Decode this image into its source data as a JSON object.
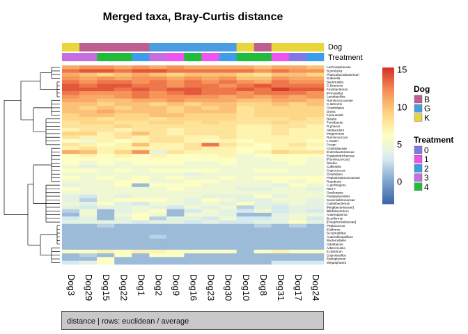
{
  "chart_data": {
    "type": "heatmap",
    "title": "Merged taxa, Bray-Curtis distance",
    "columns": [
      "Dog3",
      "Dog29",
      "Dog15",
      "Dog22",
      "Dog1",
      "Dog2",
      "Dog9",
      "Dog16",
      "Dog23",
      "Dog30",
      "Dog10",
      "Dog8",
      "Dog31",
      "Dog17",
      "Dog24"
    ],
    "rows": [
      "Lachnospiraceae",
      "B.producta",
      "Phascolarctobacterium",
      "Sutterella",
      "Bacteroides",
      "C.hiranonis",
      "Fusobacterium",
      "[Prevotella]",
      "Lactobacillus",
      "Ruminococcaceae",
      "C.stercoris",
      "Clostridiales",
      "Dorea",
      "F.prausnitzii",
      "Blautia",
      "Turicibacter",
      "R.gnavus",
      "Allobaculum",
      "Megamonas",
      "Ruminococcus",
      "L.reuteri",
      "P.copri",
      "Clostridiaceae",
      "Enterobacteriaceae",
      "Erysipelotrichaceae",
      "[Ruminococcus]",
      "Slackia",
      "Collinsella",
      "Coprococcus",
      "Clostridium",
      "Peptostreptococcaceae",
      "Roseburia",
      "C.perfringens",
      "RS4-7",
      "Oscillospira",
      "Parabacteroides",
      "Succinivibrionaceae",
      "Catenibacterium",
      "[Mogibacteriaceae]",
      "Bifidobacterium",
      "Anaeroplasma",
      "B.uniformis",
      "[Paraprevotellaceae]",
      "Peptococcus",
      "E.biforme",
      "B.coprophilus",
      "Anaerobiospirillum",
      "Bacteroidales",
      "Odoribacter",
      "Adlercreutzia",
      "E.dolichum",
      "Coprobacillus",
      "Epulopiscium",
      "Megasphaera"
    ],
    "values": [
      [
        11,
        12,
        12,
        11,
        12,
        11,
        12,
        11,
        11,
        11,
        11,
        10,
        11,
        11,
        10
      ],
      [
        13,
        14,
        14,
        13,
        14,
        14,
        13,
        13,
        13,
        13,
        13,
        12,
        13,
        12,
        12
      ],
      [
        11,
        10,
        9,
        10,
        11,
        10,
        9,
        10,
        10,
        10,
        9,
        8,
        10,
        10,
        9
      ],
      [
        12,
        11,
        12,
        11,
        12,
        12,
        11,
        12,
        11,
        12,
        10,
        10,
        12,
        11,
        11
      ],
      [
        13,
        12,
        13,
        13,
        12,
        13,
        12,
        13,
        12,
        13,
        12,
        11,
        13,
        12,
        12
      ],
      [
        14,
        13,
        14,
        14,
        13,
        13,
        12,
        13,
        13,
        12,
        13,
        14,
        13,
        13,
        13
      ],
      [
        14,
        14,
        14,
        13,
        14,
        13,
        14,
        14,
        13,
        13,
        14,
        13,
        15,
        14,
        14
      ],
      [
        13,
        12,
        12,
        12,
        13,
        12,
        13,
        14,
        13,
        13,
        12,
        13,
        13,
        13,
        12
      ],
      [
        12,
        11,
        11,
        12,
        13,
        12,
        12,
        12,
        12,
        11,
        12,
        11,
        12,
        11,
        12
      ],
      [
        11,
        11,
        10,
        10,
        11,
        11,
        12,
        11,
        11,
        11,
        10,
        10,
        11,
        11,
        10
      ],
      [
        10,
        10,
        9,
        10,
        10,
        9,
        10,
        9,
        10,
        10,
        9,
        9,
        10,
        9,
        10
      ],
      [
        10,
        9,
        10,
        9,
        10,
        10,
        9,
        10,
        9,
        10,
        8,
        9,
        9,
        9,
        9
      ],
      [
        10,
        10,
        11,
        10,
        10,
        10,
        9,
        10,
        10,
        10,
        8,
        9,
        9,
        9,
        9
      ],
      [
        9,
        10,
        10,
        9,
        9,
        10,
        10,
        9,
        9,
        9,
        8,
        9,
        9,
        9,
        9
      ],
      [
        9,
        9,
        8,
        9,
        9,
        8,
        9,
        9,
        9,
        9,
        8,
        8,
        8,
        9,
        8
      ],
      [
        8,
        9,
        9,
        8,
        8,
        9,
        9,
        8,
        9,
        8,
        8,
        8,
        9,
        8,
        8
      ],
      [
        8,
        8,
        8,
        9,
        8,
        8,
        8,
        8,
        8,
        8,
        7,
        7,
        8,
        8,
        7
      ],
      [
        7,
        8,
        8,
        7,
        8,
        8,
        7,
        8,
        8,
        8,
        7,
        7,
        8,
        7,
        7
      ],
      [
        9,
        9,
        7,
        8,
        10,
        8,
        7,
        8,
        8,
        8,
        7,
        7,
        8,
        7,
        7
      ],
      [
        8,
        7,
        7,
        8,
        7,
        8,
        8,
        7,
        7,
        8,
        7,
        7,
        7,
        7,
        7
      ],
      [
        6,
        5,
        7,
        6,
        7,
        8,
        8,
        7,
        6,
        7,
        6,
        7,
        7,
        7,
        6
      ],
      [
        8,
        7,
        6,
        7,
        10,
        7,
        7,
        8,
        13,
        8,
        7,
        6,
        7,
        8,
        7
      ],
      [
        7,
        8,
        7,
        7,
        7,
        7,
        7,
        8,
        7,
        7,
        6,
        6,
        7,
        7,
        6
      ],
      [
        11,
        10,
        7,
        9,
        12,
        4,
        8,
        7,
        7,
        7,
        6,
        7,
        9,
        8,
        8
      ],
      [
        6,
        7,
        6,
        7,
        6,
        7,
        6,
        6,
        6,
        7,
        5,
        6,
        6,
        6,
        6
      ],
      [
        6,
        6,
        6,
        6,
        6,
        6,
        6,
        6,
        6,
        6,
        5,
        5,
        6,
        6,
        5
      ],
      [
        6,
        5,
        6,
        5,
        6,
        6,
        6,
        5,
        5,
        6,
        5,
        5,
        5,
        6,
        5
      ],
      [
        5,
        4,
        5,
        5,
        5,
        5,
        5,
        5,
        5,
        5,
        5,
        5,
        5,
        5,
        5
      ],
      [
        6,
        6,
        5,
        6,
        5,
        6,
        6,
        6,
        6,
        5,
        5,
        6,
        6,
        5,
        5
      ],
      [
        5,
        5,
        5,
        5,
        5,
        5,
        5,
        4,
        5,
        5,
        5,
        5,
        5,
        5,
        5
      ],
      [
        6,
        5,
        6,
        5,
        6,
        5,
        6,
        5,
        5,
        6,
        5,
        6,
        6,
        6,
        6
      ],
      [
        5,
        5,
        5,
        6,
        6,
        5,
        5,
        6,
        6,
        5,
        5,
        5,
        6,
        5,
        6
      ],
      [
        4,
        5,
        5,
        6,
        1,
        6,
        6,
        6,
        5,
        5,
        5,
        5,
        4,
        6,
        5
      ],
      [
        6,
        5,
        5,
        5,
        5,
        5,
        6,
        5,
        5,
        5,
        4,
        4,
        5,
        5,
        4
      ],
      [
        5,
        5,
        5,
        5,
        5,
        5,
        5,
        5,
        5,
        5,
        5,
        5,
        5,
        5,
        5
      ],
      [
        4,
        3,
        5,
        4,
        5,
        5,
        5,
        5,
        4,
        4,
        4,
        6,
        4,
        5,
        5
      ],
      [
        4,
        2,
        5,
        6,
        6,
        6,
        5,
        4,
        6,
        5,
        4,
        4,
        5,
        5,
        4
      ],
      [
        5,
        4,
        6,
        4,
        3,
        5,
        5,
        4,
        5,
        4,
        6,
        4,
        4,
        5,
        4
      ],
      [
        4,
        3,
        4,
        4,
        5,
        4,
        3,
        5,
        4,
        5,
        2,
        4,
        3,
        4,
        4
      ],
      [
        2,
        5,
        1,
        4,
        5,
        6,
        1,
        3,
        5,
        4,
        3,
        5,
        3,
        4,
        3
      ],
      [
        1,
        5,
        1,
        5,
        6,
        5,
        1,
        5,
        5,
        4,
        1,
        1,
        4,
        5,
        5
      ],
      [
        3,
        4,
        1,
        4,
        6,
        2,
        4,
        4,
        3,
        5,
        3,
        3,
        4,
        5,
        3
      ],
      [
        4,
        4,
        4,
        4,
        3,
        4,
        4,
        3,
        4,
        3,
        3,
        4,
        4,
        6,
        4
      ],
      [
        1,
        1,
        2,
        1,
        1,
        1,
        1,
        1,
        1,
        1,
        1,
        2,
        1,
        2,
        1
      ],
      [
        1,
        1,
        1,
        1,
        1,
        1,
        1,
        1,
        1,
        1,
        1,
        1,
        1,
        1,
        1
      ],
      [
        1,
        1,
        1,
        1,
        1,
        1,
        1,
        1,
        1,
        1,
        1,
        1,
        1,
        1,
        1
      ],
      [
        1,
        1,
        1,
        1,
        1,
        2,
        1,
        1,
        1,
        1,
        1,
        1,
        1,
        1,
        1
      ],
      [
        1,
        1,
        1,
        1,
        1,
        1,
        1,
        1,
        1,
        1,
        1,
        1,
        1,
        1,
        1
      ],
      [
        1,
        1,
        1,
        1,
        1,
        1,
        1,
        1,
        1,
        1,
        1,
        1,
        1,
        1,
        1
      ],
      [
        1,
        1,
        1,
        1,
        1,
        1,
        1,
        1,
        1,
        1,
        1,
        1,
        1,
        1,
        1
      ],
      [
        6,
        6,
        7,
        6,
        7,
        7,
        6,
        6,
        6,
        6,
        1,
        6,
        7,
        6,
        6
      ],
      [
        1,
        2,
        1,
        6,
        1,
        6,
        6,
        1,
        1,
        1,
        1,
        1,
        1,
        1,
        1
      ],
      [
        1,
        1,
        6,
        1,
        1,
        1,
        1,
        1,
        1,
        1,
        1,
        1,
        1,
        1,
        1
      ],
      [
        3,
        4,
        6,
        1,
        1,
        1,
        1,
        1,
        1,
        1,
        1,
        1,
        3,
        3,
        3
      ]
    ],
    "colorbar": {
      "ticks": [
        0,
        5,
        10,
        15
      ],
      "min": -3,
      "max": 15.3,
      "colors": [
        "#3b63a8",
        "#7fa5cf",
        "#d8ecf0",
        "#ffffc1",
        "#fdd382",
        "#f68e55",
        "#d62f28"
      ]
    },
    "annotations": {
      "Dog": [
        "K",
        "B",
        "B",
        "B",
        "B",
        "G",
        "G",
        "G",
        "G",
        "G",
        "K",
        "B",
        "K",
        "K",
        "K"
      ],
      "Treatment": [
        "3",
        "3",
        "4",
        "4",
        "2",
        "3",
        "1",
        "4",
        "1",
        "2",
        "4",
        "4",
        "1",
        "0",
        "2"
      ]
    },
    "legends": {
      "Dog": {
        "title": "Dog",
        "entries": [
          {
            "label": "B",
            "color": "#c05d91"
          },
          {
            "label": "G",
            "color": "#4a9de0"
          },
          {
            "label": "K",
            "color": "#e9d63a"
          }
        ]
      },
      "Treatment": {
        "title": "Treatment",
        "entries": [
          {
            "label": "0",
            "color": "#8378e3"
          },
          {
            "label": "1",
            "color": "#ee55ee"
          },
          {
            "label": "2",
            "color": "#3d9dea"
          },
          {
            "label": "3",
            "color": "#c46ee0"
          },
          {
            "label": "4",
            "color": "#1fbd3a"
          }
        ]
      }
    },
    "annotation_track_labels": [
      "Dog",
      "Treatment"
    ],
    "caption": "distance | rows: euclidean / average"
  }
}
